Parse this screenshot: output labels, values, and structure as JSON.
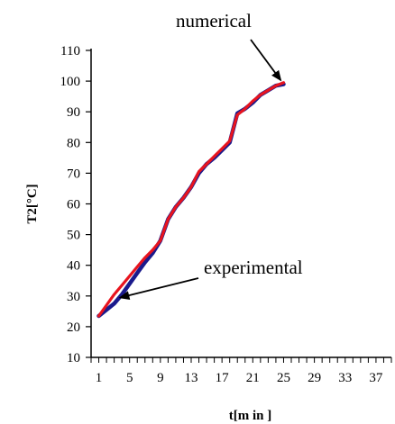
{
  "chart_data": {
    "type": "line",
    "title": "",
    "xlabel": "t[m in ]",
    "ylabel": "T2[°C]",
    "xlim": [
      0,
      39
    ],
    "ylim": [
      10,
      110
    ],
    "x_ticks": [
      1,
      5,
      9,
      13,
      17,
      21,
      25,
      29,
      33,
      37
    ],
    "y_ticks": [
      10,
      20,
      30,
      40,
      50,
      60,
      70,
      80,
      90,
      100,
      110
    ],
    "grid": false,
    "legend": "none",
    "series": [
      {
        "name": "experimental",
        "color": "#1a1a8c",
        "x": [
          1,
          2,
          3,
          4,
          5,
          6,
          7,
          8,
          9,
          10,
          11,
          12,
          13,
          14,
          15,
          16,
          17,
          18,
          19,
          20,
          21,
          22,
          23,
          24,
          25
        ],
        "y": [
          23.5,
          25.5,
          27.5,
          30.5,
          34,
          37.5,
          41,
          44,
          48,
          55,
          59,
          62,
          65.5,
          70,
          73,
          75,
          77.5,
          80,
          89.5,
          91,
          93,
          95.5,
          97,
          98.5,
          99
        ]
      },
      {
        "name": "numerical",
        "color": "#e8141e",
        "x": [
          1,
          2,
          3,
          4,
          5,
          6,
          7,
          8,
          9,
          10,
          11,
          12,
          13,
          14,
          15,
          16,
          17,
          18,
          19,
          20,
          21,
          22,
          23,
          24,
          25
        ],
        "y": [
          23.5,
          27,
          30.5,
          33.5,
          36.5,
          39.5,
          42.5,
          45,
          48,
          55,
          59,
          62,
          65.5,
          70.5,
          73,
          75.5,
          78,
          80.5,
          89,
          91,
          93.5,
          95.5,
          97,
          98.5,
          99.5
        ]
      }
    ],
    "annotations": [
      {
        "text": "numerical",
        "target_series": "numerical"
      },
      {
        "text": "experimental",
        "target_series": "experimental"
      }
    ]
  }
}
